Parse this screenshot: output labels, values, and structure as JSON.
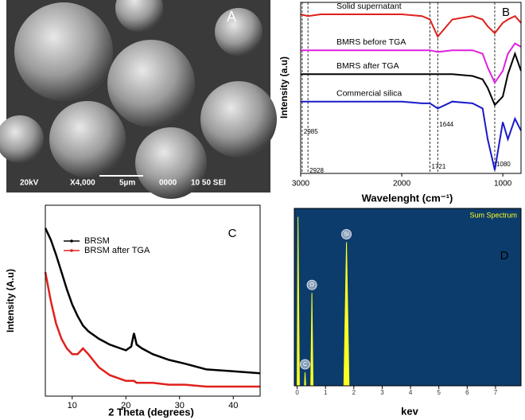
{
  "image": {
    "label": "A",
    "info": [
      "20kV",
      "X4,000",
      "5µm",
      "0000",
      "10 50 SEI"
    ]
  },
  "chart_data": [
    {
      "type": "line",
      "label": "B",
      "x_label": "Wavelenght (cm⁻¹)",
      "y_label": "Intensity (a.u)",
      "x": [
        3000,
        2928,
        2800,
        2000,
        1800,
        1721,
        1644,
        1500,
        1300,
        1200,
        1150,
        1080,
        1000,
        950,
        880,
        820
      ],
      "xlim": [
        3000,
        820
      ],
      "xticks": [
        3000,
        2000,
        1000
      ],
      "ylim": [
        0,
        100
      ],
      "vlines": [
        2928,
        2985,
        1721,
        1644,
        1080
      ],
      "series": [
        {
          "name": "Solid supernatant",
          "color": "#e0201c",
          "values": [
            93,
            92,
            93,
            93,
            92,
            90,
            80,
            90,
            92,
            90,
            86,
            82,
            88,
            90,
            92,
            88
          ]
        },
        {
          "name": "BMRS before TGA",
          "color": "#e020e0",
          "values": [
            72,
            72,
            72,
            72,
            72,
            72,
            71,
            72,
            72,
            70,
            62,
            53,
            60,
            70,
            76,
            74
          ]
        },
        {
          "name": "BMRS after TGA",
          "color": "#000000",
          "values": [
            58,
            58,
            58,
            58,
            58,
            58,
            58,
            58,
            57,
            55,
            50,
            40,
            45,
            58,
            70,
            60
          ]
        },
        {
          "name": "Commercial silica",
          "color": "#1a1acc",
          "values": [
            42,
            42,
            42,
            42,
            41,
            41,
            38,
            42,
            41,
            38,
            20,
            2,
            30,
            20,
            32,
            25
          ]
        }
      ]
    },
    {
      "type": "line",
      "label": "C",
      "x_label": "2 Theta (degrees)",
      "y_label": "Intensity (A.u)",
      "x": [
        5,
        6,
        7,
        8,
        9,
        10,
        11,
        12,
        13,
        15,
        17,
        19,
        20,
        21,
        21.5,
        22,
        23,
        25,
        28,
        31,
        35,
        40,
        45
      ],
      "xlim": [
        5,
        45
      ],
      "xticks": [
        10,
        20,
        30,
        40
      ],
      "ylim": [
        0,
        100
      ],
      "legend": "upper-left",
      "series": [
        {
          "name": "BRSM",
          "color": "#000000",
          "values": [
            88,
            82,
            74,
            65,
            56,
            48,
            42,
            37,
            34,
            30,
            27,
            25,
            24,
            26,
            33,
            27,
            25,
            22,
            19,
            17,
            14,
            13,
            12
          ]
        },
        {
          "name": "BRSM after TGA",
          "color": "#e0201c",
          "values": [
            65,
            50,
            38,
            30,
            25,
            22,
            22,
            25,
            22,
            15,
            11,
            9,
            8,
            8,
            8,
            7,
            7,
            7,
            6,
            6,
            5,
            5,
            5
          ]
        }
      ]
    },
    {
      "type": "area",
      "label": "D",
      "title": "Sum Spectrum",
      "x_label": "kev",
      "x": [
        0,
        0.03,
        0.08,
        0.2,
        0.26,
        0.28,
        0.3,
        0.4,
        0.48,
        0.52,
        0.56,
        0.7,
        1.65,
        1.74,
        1.83,
        2.0,
        7.9
      ],
      "values": [
        0,
        100,
        0,
        0,
        0,
        8,
        0,
        0,
        0,
        55,
        0,
        0,
        0,
        85,
        0,
        0,
        0
      ],
      "point_labels": [
        null,
        null,
        null,
        null,
        null,
        "C",
        null,
        null,
        null,
        "O",
        null,
        null,
        null,
        "Si",
        null,
        null,
        null
      ],
      "xlim": [
        -0.1,
        7.9
      ],
      "xticks": [
        0,
        1,
        2,
        3,
        4,
        5,
        6,
        7
      ],
      "ylim": [
        0,
        105
      ],
      "color": "#ffff20",
      "background": "#0c3c6c"
    }
  ]
}
